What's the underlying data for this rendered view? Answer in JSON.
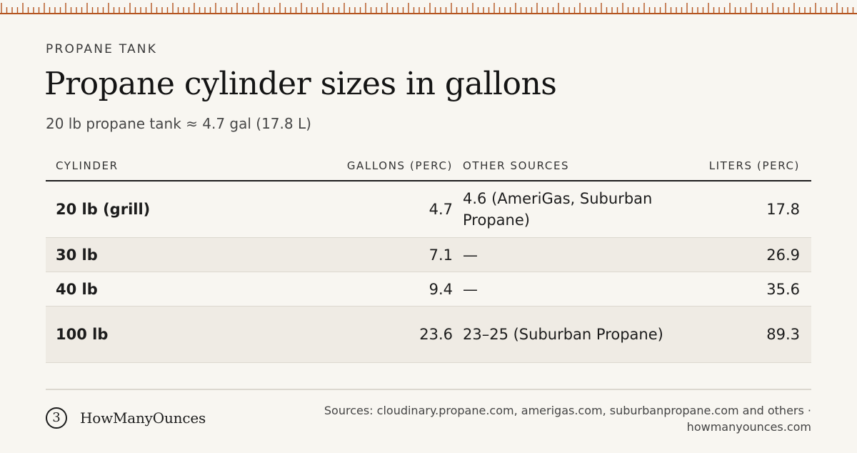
{
  "eyebrow": "PROPANE TANK",
  "title": "Propane cylinder sizes in gallons",
  "subtitle": "20 lb propane tank ≈ 4.7 gal (17.8 L)",
  "table": {
    "headers": {
      "cylinder": "CYLINDER",
      "gallons": "GALLONS (PERC)",
      "other": "OTHER SOURCES",
      "liters": "LITERS (PERC)"
    },
    "rows": [
      {
        "cylinder": "20 lb (grill)",
        "gallons": "4.7",
        "other": "4.6 (AmeriGas, Suburban Propane)",
        "liters": "17.8"
      },
      {
        "cylinder": "30 lb",
        "gallons": "7.1",
        "other": "—",
        "liters": "26.9"
      },
      {
        "cylinder": "40 lb",
        "gallons": "9.4",
        "other": "—",
        "liters": "35.6"
      },
      {
        "cylinder": "100 lb",
        "gallons": "23.6",
        "other": "23–25 (Suburban Propane)",
        "liters": "89.3"
      }
    ]
  },
  "footer": {
    "brand_glyph": "3",
    "brand_name": "HowManyOunces",
    "sources": "Sources: cloudinary.propane.com, amerigas.com, suburbanpropane.com and others · howmanyounces.com"
  },
  "colors": {
    "background": "#f8f6f1",
    "ruler": "#b4541f",
    "row_shade": "#efebe4",
    "text": "#1c1c1c"
  },
  "icons": {
    "brand": "circled-3-logo-icon",
    "ruler": "ruler-ticks-decoration"
  }
}
